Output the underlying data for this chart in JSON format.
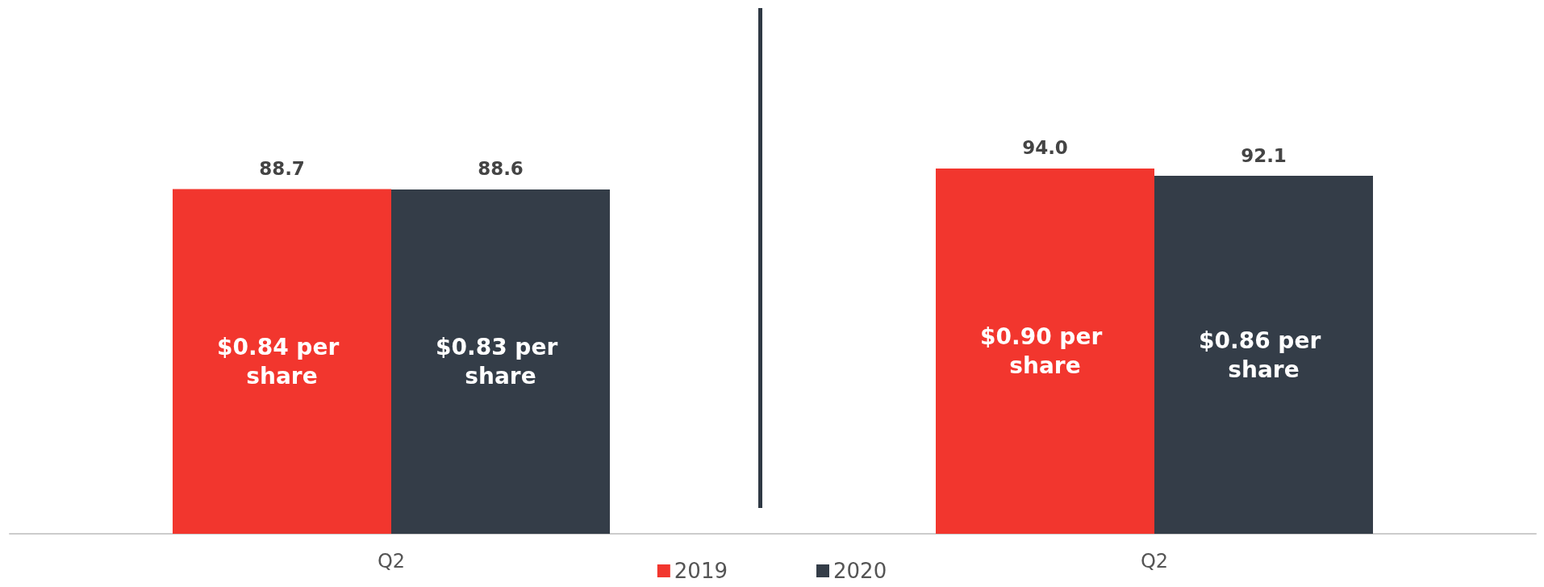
{
  "chart_data": {
    "type": "bar",
    "categories": [
      "Q2",
      "Q2"
    ],
    "series": [
      {
        "name": "2019",
        "color": "#f2362e",
        "values": [
          88.7,
          94.0
        ],
        "value_labels": [
          "88.7",
          "94.0"
        ]
      },
      {
        "name": "2020",
        "color": "#343d48",
        "values": [
          88.6,
          92.1
        ],
        "value_labels": [
          "88.6",
          "92.1"
        ]
      }
    ],
    "tick_labels": "x",
    "legend": "bottom",
    "annotations": [
      "$0.84 per share",
      "$0.83 per share",
      "$0.90 per share",
      "$0.86 per share"
    ]
  }
}
